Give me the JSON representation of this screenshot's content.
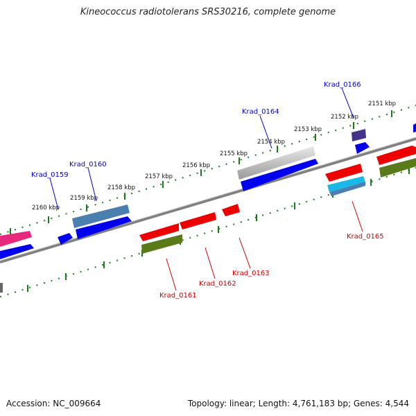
{
  "title": "Kineococcus radiotolerans SRS30216, complete genome",
  "footer": {
    "accession": "Accession: NC_009664",
    "summary": "Topology: linear; Length: 4,761,183 bp; Genes: 4,544"
  },
  "ruler_labels": [
    "2151 kbp",
    "2152 kbp",
    "2153 kbp",
    "2154 kbp",
    "2155 kbp",
    "2156 kbp",
    "2157 kbp",
    "2158 kbp",
    "2159 kbp",
    "2160 kbp"
  ],
  "gene_labels": {
    "krad_0159": "Krad_0159",
    "krad_0160": "Krad_0160",
    "krad_0164": "Krad_0164",
    "krad_0166": "Krad_0166",
    "krad_0161": "Krad_0161",
    "krad_0162": "Krad_0162",
    "krad_0163": "Krad_0163",
    "krad_0165": "Krad_0165"
  },
  "colors": {
    "backbone": "#808080",
    "ruler": "#1a7a1a",
    "forward_label": "#0000cc",
    "reverse_label": "#cc0000",
    "cds_blue": "#0000ee",
    "cds_red": "#ee0000",
    "cds_olive": "#5a7a1a",
    "cds_gray": "#a8a8a8",
    "cds_steel": "#4a7fb0",
    "cds_pink": "#e8287c",
    "cds_cyan": "#18b8e8",
    "cds_navy": "#443388"
  }
}
